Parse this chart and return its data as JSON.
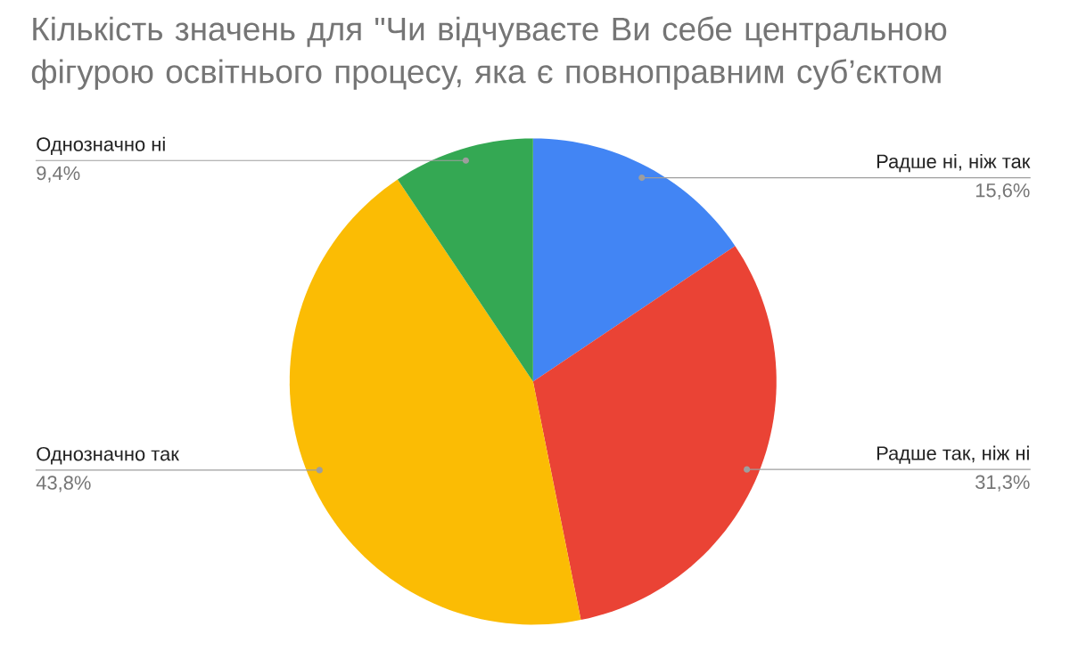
{
  "chart_data": {
    "type": "pie",
    "title": "Кількість значень для \"Чи відчуваєте Ви себе центральною фігурою освітнього процесу, яка є повноправним суб’єктом",
    "categories": [
      "Радше ні, ніж так",
      "Радше так, ніж ні",
      "Однозначно так",
      "Однозначно ні"
    ],
    "values": [
      15.6,
      31.3,
      43.8,
      9.4
    ],
    "colors": [
      "#4285f4",
      "#ea4335",
      "#fbbc04",
      "#34a853"
    ],
    "value_labels": [
      "15,6%",
      "31,3%",
      "43,8%",
      "9,4%"
    ]
  }
}
